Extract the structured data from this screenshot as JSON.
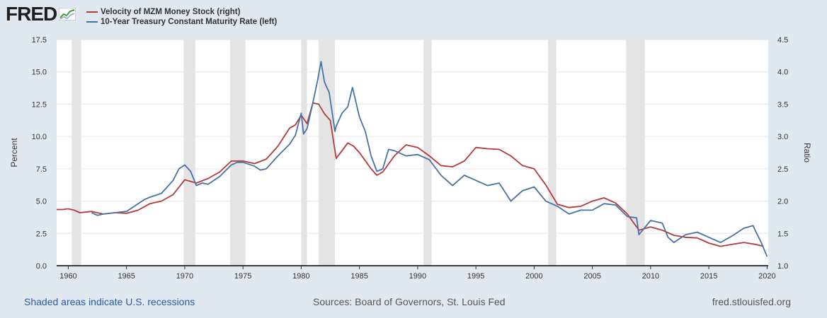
{
  "header": {
    "logo_text": "FRED",
    "logo_icon": "line-graph-icon"
  },
  "footer": {
    "recession_note": "Shaded areas indicate U.S. recessions",
    "sources": "Sources: Board of Governors, St. Louis Fed",
    "site": "fred.stlouisfed.org"
  },
  "chart_data": {
    "type": "line",
    "title": "",
    "xlabel": "",
    "ylabel_left": "Percent",
    "ylabel_right": "Ratio",
    "xlim": [
      1959,
      2020.1
    ],
    "ylim_left": [
      0,
      17.5
    ],
    "ylim_right": [
      1.0,
      4.5
    ],
    "x_ticks": [
      1960,
      1965,
      1970,
      1975,
      1980,
      1985,
      1990,
      1995,
      2000,
      2005,
      2010,
      2015,
      2020
    ],
    "y_ticks_left": [
      "0.0",
      "2.5",
      "5.0",
      "7.5",
      "10.0",
      "12.5",
      "15.0",
      "17.5"
    ],
    "y_ticks_right": [
      "1.0",
      "1.5",
      "2.0",
      "2.5",
      "3.0",
      "3.5",
      "4.0",
      "4.5"
    ],
    "grid": true,
    "legend_position": "top-left",
    "recessions": [
      [
        1960.3,
        1961.1
      ],
      [
        1969.9,
        1970.9
      ],
      [
        1973.9,
        1975.2
      ],
      [
        1980.0,
        1980.5
      ],
      [
        1981.5,
        1982.9
      ],
      [
        1990.5,
        1991.2
      ],
      [
        2001.2,
        2001.9
      ],
      [
        2007.9,
        2009.5
      ]
    ],
    "series": [
      {
        "name": "Velocity of MZM Money Stock (right)",
        "axis": "right",
        "color": "#b5393a",
        "x": [
          1959,
          1959.5,
          1960,
          1960.5,
          1961,
          1962,
          1963,
          1964,
          1965,
          1966,
          1967,
          1968,
          1969,
          1970,
          1971,
          1972,
          1973,
          1974,
          1975,
          1976,
          1977,
          1978,
          1979,
          1979.5,
          1980,
          1980.5,
          1981,
          1981.5,
          1982,
          1982.5,
          1983,
          1983.5,
          1984,
          1984.5,
          1985,
          1986,
          1986.5,
          1987,
          1988,
          1989,
          1990,
          1991,
          1992,
          1993,
          1994,
          1995,
          1996,
          1997,
          1998,
          1999,
          2000,
          2001,
          2002,
          2003,
          2004,
          2005,
          2006,
          2007,
          2008,
          2009,
          2010,
          2011,
          2012,
          2013,
          2014,
          2015,
          2016,
          2017,
          2018,
          2019,
          2019.7
        ],
        "values": [
          1.87,
          1.87,
          1.88,
          1.86,
          1.82,
          1.84,
          1.8,
          1.82,
          1.81,
          1.86,
          1.96,
          2.0,
          2.1,
          2.33,
          2.28,
          2.35,
          2.45,
          2.62,
          2.62,
          2.58,
          2.65,
          2.85,
          3.13,
          3.18,
          3.33,
          3.2,
          3.52,
          3.5,
          3.35,
          3.25,
          2.66,
          2.78,
          2.9,
          2.85,
          2.75,
          2.5,
          2.4,
          2.45,
          2.7,
          2.87,
          2.83,
          2.7,
          2.55,
          2.53,
          2.62,
          2.83,
          2.81,
          2.8,
          2.7,
          2.55,
          2.5,
          2.25,
          1.95,
          1.9,
          1.92,
          2.0,
          2.05,
          1.97,
          1.8,
          1.55,
          1.6,
          1.55,
          1.47,
          1.44,
          1.43,
          1.35,
          1.3,
          1.33,
          1.36,
          1.33,
          1.3
        ]
      },
      {
        "name": "10-Year Treasury Constant Maturity Rate (left)",
        "axis": "left",
        "color": "#4572a7",
        "x": [
          1962,
          1962.5,
          1963,
          1964,
          1965,
          1966,
          1966.5,
          1967,
          1968,
          1969,
          1969.5,
          1970,
          1970.5,
          1971,
          1971.5,
          1972,
          1973,
          1974,
          1974.5,
          1975,
          1976,
          1976.5,
          1977,
          1978,
          1979,
          1979.5,
          1980,
          1980.2,
          1980.5,
          1981,
          1981.4,
          1981.7,
          1982,
          1982.4,
          1982.9,
          1983,
          1983.5,
          1984,
          1984.4,
          1985,
          1985.5,
          1986,
          1986.5,
          1987,
          1987.5,
          1988,
          1989,
          1990,
          1991,
          1992,
          1993,
          1994,
          1995,
          1996,
          1997,
          1998,
          1999,
          2000,
          2001,
          2002,
          2003,
          2004,
          2005,
          2006,
          2007,
          2008,
          2008.8,
          2009,
          2010,
          2011,
          2011.5,
          2012,
          2013,
          2014,
          2015,
          2016,
          2017,
          2018,
          2018.8,
          2019,
          2019.5,
          2020
        ],
        "values": [
          4.1,
          3.9,
          4.0,
          4.1,
          4.2,
          4.8,
          5.1,
          5.3,
          5.6,
          6.6,
          7.5,
          7.8,
          7.3,
          6.2,
          6.4,
          6.3,
          6.9,
          7.8,
          8.0,
          8.0,
          7.7,
          7.4,
          7.5,
          8.5,
          9.4,
          10.1,
          11.8,
          10.2,
          10.6,
          12.6,
          14.3,
          15.8,
          14.2,
          13.4,
          10.4,
          10.8,
          11.8,
          12.3,
          13.8,
          11.5,
          10.4,
          8.5,
          7.3,
          7.5,
          9.0,
          8.9,
          8.5,
          8.6,
          8.2,
          7.0,
          6.2,
          7.0,
          6.6,
          6.2,
          6.4,
          5.0,
          5.8,
          6.1,
          5.0,
          4.6,
          4.0,
          4.3,
          4.3,
          4.8,
          4.7,
          3.8,
          3.7,
          2.4,
          3.5,
          3.3,
          2.2,
          1.8,
          2.4,
          2.6,
          2.2,
          1.8,
          2.3,
          2.9,
          3.1,
          2.7,
          1.8,
          0.7
        ]
      }
    ]
  }
}
